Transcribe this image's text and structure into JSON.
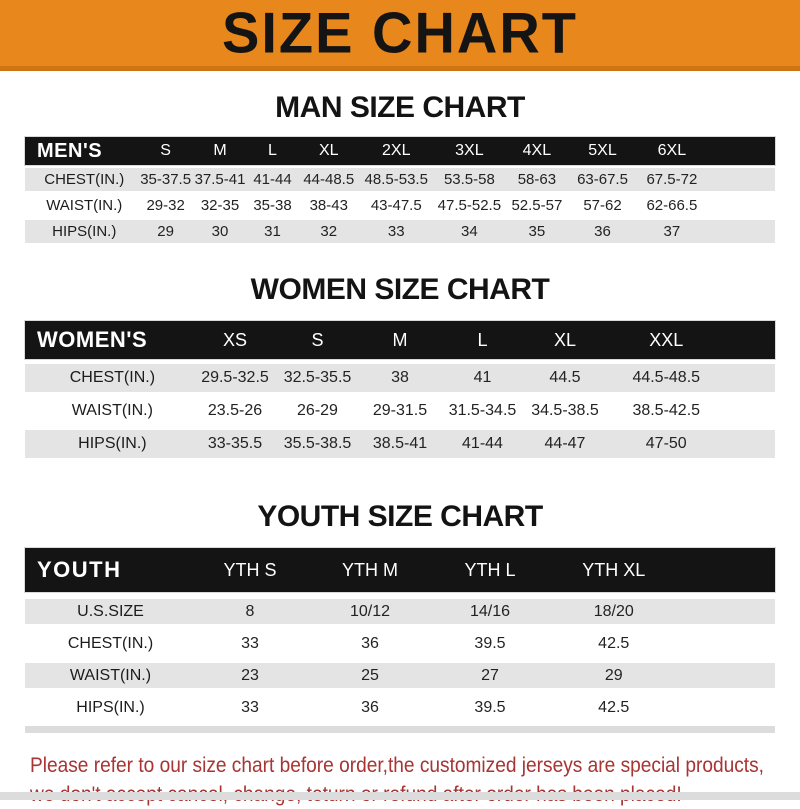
{
  "banner": {
    "title": "SIZE CHART"
  },
  "sections": [
    {
      "title": "MAN SIZE CHART",
      "header_label": "MEN'S",
      "columns": [
        "S",
        "M",
        "L",
        "XL",
        "2XL",
        "3XL",
        "4XL",
        "5XL",
        "6XL"
      ],
      "rows": [
        {
          "label": "CHEST(IN.)",
          "values": [
            "35-37.5",
            "37.5-41",
            "41-44",
            "44-48.5",
            "48.5-53.5",
            "53.5-58",
            "58-63",
            "63-67.5",
            "67.5-72"
          ]
        },
        {
          "label": "WAIST(IN.)",
          "values": [
            "29-32",
            "32-35",
            "35-38",
            "38-43",
            "43-47.5",
            "47.5-52.5",
            "52.5-57",
            "57-62",
            "62-66.5"
          ]
        },
        {
          "label": "HIPS(IN.)",
          "values": [
            "29",
            "30",
            "31",
            "32",
            "33",
            "34",
            "35",
            "36",
            "37"
          ]
        }
      ]
    },
    {
      "title": "WOMEN SIZE CHART",
      "header_label": "WOMEN'S",
      "columns": [
        "XS",
        "S",
        "M",
        "L",
        "XL",
        "XXL"
      ],
      "rows": [
        {
          "label": "CHEST(IN.)",
          "values": [
            "29.5-32.5",
            "32.5-35.5",
            "38",
            "41",
            "44.5",
            "44.5-48.5"
          ]
        },
        {
          "label": "WAIST(IN.)",
          "values": [
            "23.5-26",
            "26-29",
            "29-31.5",
            "31.5-34.5",
            "34.5-38.5",
            "38.5-42.5"
          ]
        },
        {
          "label": "HIPS(IN.)",
          "values": [
            "33-35.5",
            "35.5-38.5",
            "38.5-41",
            "41-44",
            "44-47",
            "47-50"
          ]
        }
      ]
    },
    {
      "title": "YOUTH SIZE CHART",
      "header_label": "YOUTH",
      "columns": [
        "YTH S",
        "YTH M",
        "YTH L",
        "YTH XL"
      ],
      "rows": [
        {
          "label": "U.S.SIZE",
          "values": [
            "8",
            "10/12",
            "14/16",
            "18/20"
          ]
        },
        {
          "label": "CHEST(IN.)",
          "values": [
            "33",
            "36",
            "39.5",
            "42.5"
          ]
        },
        {
          "label": "WAIST(IN.)",
          "values": [
            "23",
            "25",
            "27",
            "29"
          ]
        },
        {
          "label": "HIPS(IN.)",
          "values": [
            "33",
            "36",
            "39.5",
            "42.5"
          ]
        }
      ]
    }
  ],
  "footer": {
    "line1": "Please refer to our size chart before order,the customized jerseys are special products,",
    "line2": "we don't accept cancel, change, teturn or refund after order has been placed!"
  },
  "colors": {
    "banner_bg": "#E8871C",
    "banner_border": "#CF7413",
    "bar_bg": "#141414",
    "stripe": "#E4E4E4",
    "strip": "#DCDCDC",
    "red": "#A83434"
  }
}
